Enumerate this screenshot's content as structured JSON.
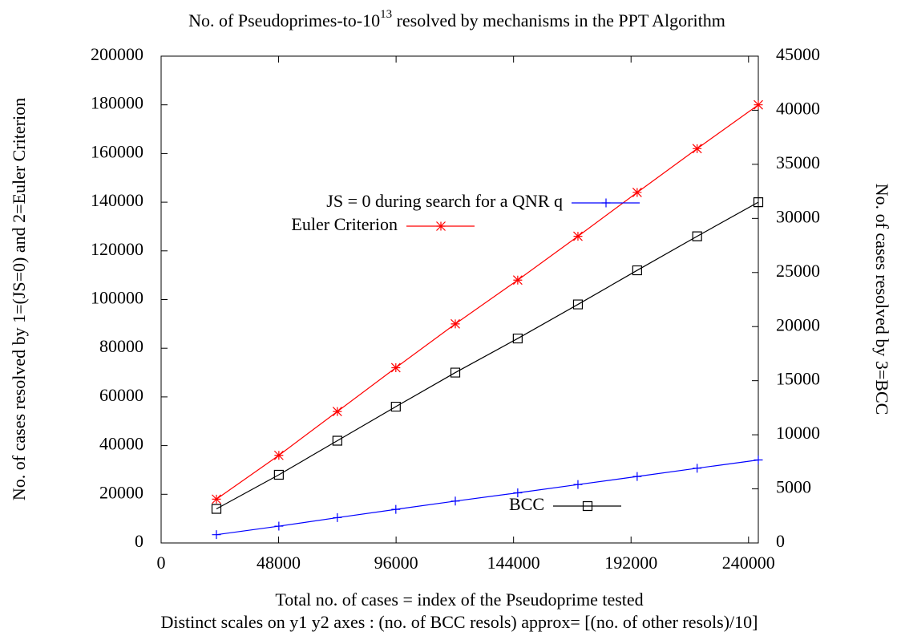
{
  "chart_data": {
    "type": "line",
    "title": [
      "No. of Pseudoprimes-to-10",
      "13",
      " resolved by mechanisms in the PPT Algorithm"
    ],
    "xlabel": "Total no. of cases = index of the Pseudoprime tested",
    "note": "Distinct scales on y1 y2 axes : (no. of BCC resols) approx= [(no. of other resols)/10]",
    "ylabel": "No. of cases resolved by 1=(JS=0) and 2=Euler Criterion",
    "y2label": "No. of cases resolved by 3=BCC",
    "x": [
      22600,
      48100,
      72000,
      95900,
      120200,
      145700,
      170300,
      194500,
      219000,
      244000
    ],
    "xlim": [
      0,
      244000
    ],
    "xticks": [
      0,
      48000,
      96000,
      144000,
      192000,
      240000
    ],
    "ylim": [
      0,
      200000
    ],
    "yticks": [
      0,
      20000,
      40000,
      60000,
      80000,
      100000,
      120000,
      140000,
      160000,
      180000,
      200000
    ],
    "y2lim": [
      0,
      45000
    ],
    "y2ticks": [
      0,
      5000,
      10000,
      15000,
      20000,
      25000,
      30000,
      35000,
      40000,
      45000
    ],
    "series": [
      {
        "name": "JS = 0 during search for a QNR q",
        "color": "#0000ff",
        "marker": "plus",
        "values": [
          3400,
          6900,
          10400,
          13800,
          17200,
          20600,
          24000,
          27300,
          30700,
          34100
        ]
      },
      {
        "name": "Euler Criterion",
        "color": "#ff0000",
        "marker": "star",
        "values": [
          18000,
          36000,
          54000,
          72000,
          90000,
          108000,
          126000,
          144000,
          162000,
          180000
        ]
      },
      {
        "name": "BCC",
        "color": "#000000",
        "marker": "square",
        "axis": "y2",
        "values": [
          3150,
          6300,
          9450,
          12600,
          15750,
          18900,
          22050,
          25200,
          28350,
          31500
        ]
      }
    ]
  }
}
